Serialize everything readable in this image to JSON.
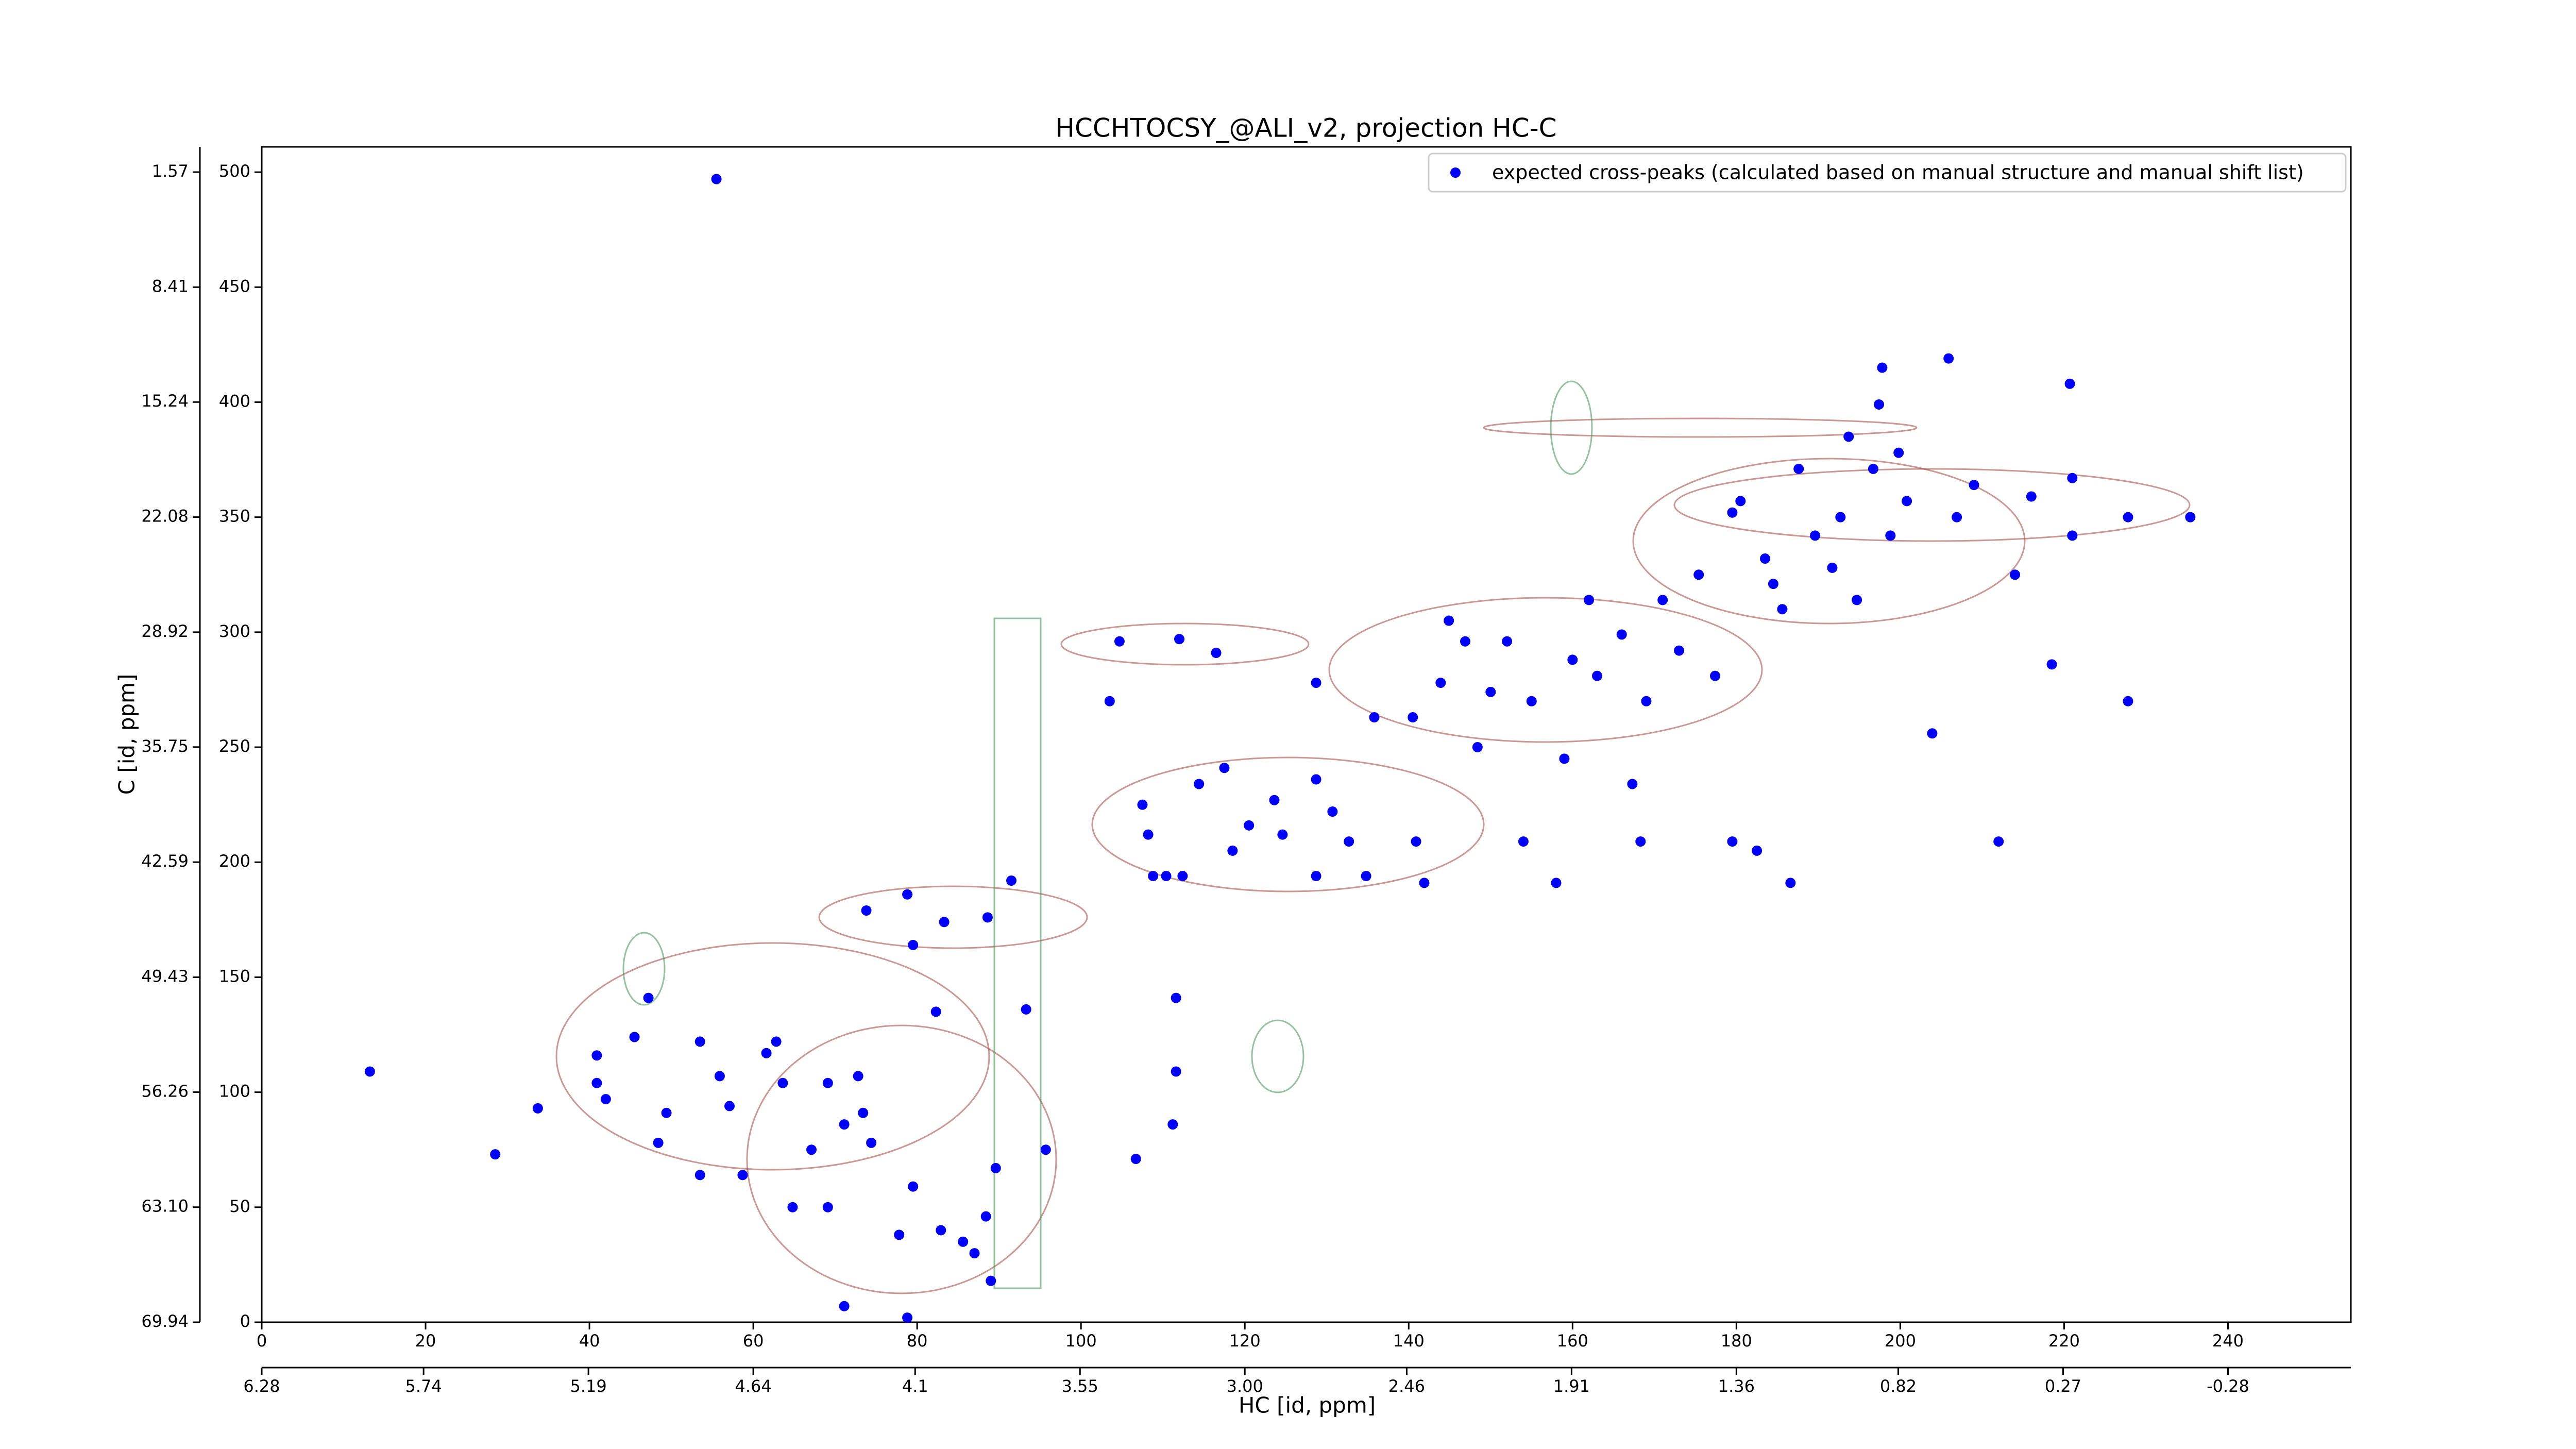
{
  "chart_data": {
    "type": "scatter",
    "title": "HCCHTOCSY_@ALI_v2, projection HC-C",
    "xlabel": "HC [id, ppm]",
    "ylabel": "C [id, ppm]",
    "xlim": [
      0,
      255
    ],
    "ylim": [
      0,
      511
    ],
    "xticks": [
      0,
      20,
      40,
      60,
      80,
      100,
      120,
      140,
      160,
      180,
      200,
      220,
      240
    ],
    "yticks": [
      0,
      50,
      100,
      150,
      200,
      250,
      300,
      350,
      400,
      450,
      500
    ],
    "x2lim": [
      6.28,
      -0.69
    ],
    "x2ticks": [
      6.28,
      5.74,
      5.19,
      4.64,
      4.1,
      3.55,
      {
        "value": 3,
        "label": "3.00"
      },
      2.46,
      1.91,
      1.36,
      0.82,
      0.27,
      -0.28
    ],
    "y2lim": [
      69.94,
      0.07
    ],
    "y2ticks": [
      69.94,
      {
        "value": 63.1,
        "label": "63.10"
      },
      56.26,
      49.43,
      42.59,
      35.75,
      28.92,
      22.08,
      15.24,
      8.41,
      1.57
    ],
    "legend_loc": "upper right",
    "series": [
      {
        "name": "expected cross-peaks (calculated based on manual structure and manual shift list)",
        "color": "#0000ff",
        "x": [
          55.5,
          13.2,
          28.5,
          33.7,
          40.9,
          40.9,
          42,
          45.5,
          47.2,
          48.4,
          49.4,
          53.5,
          53.5,
          55.9,
          57.1,
          58.7,
          61.6,
          62.8,
          63.6,
          64.8,
          67.1,
          69.1,
          69.1,
          71.1,
          72.8,
          73.4,
          74.4,
          71.1,
          78.8,
          77.8,
          79.5,
          82.9,
          85.6,
          87,
          88.4,
          89,
          89.6,
          95.7,
          93.3,
          78.8,
          79.5,
          82.3,
          83.3,
          73.8,
          88.6,
          91.5,
          103.5,
          104.7,
          112,
          116.5,
          106.7,
          111.2,
          111.6,
          111.6,
          108.8,
          110.4,
          112.4,
          108.2,
          107.5,
          114.4,
          117.5,
          118.5,
          120.5,
          123.6,
          124.6,
          128.7,
          128.7,
          128.7,
          130.7,
          132.7,
          134.8,
          135.8,
          140.5,
          140.9,
          141.9,
          143.9,
          144.9,
          146.9,
          148.4,
          150,
          152,
          154,
          155,
          158,
          159,
          160,
          162,
          163,
          166,
          167.3,
          168.3,
          169,
          171,
          173,
          175.4,
          177.4,
          179.5,
          180.5,
          182.5,
          183.5,
          185.6,
          186.6,
          187.6,
          189.6,
          191.7,
          192.7,
          194.7,
          196.7,
          197.8,
          198.8,
          199.8,
          200.8,
          203.9,
          205.9,
          206.9,
          209,
          212,
          214,
          216,
          218.5,
          220.7,
          221,
          221,
          227.8,
          227.8,
          235.4,
          197.4,
          193.7,
          184.5,
          179.5
        ],
        "values": [
          497,
          109,
          73,
          93,
          116,
          104,
          97,
          124,
          141,
          78,
          91,
          122,
          64,
          107,
          94,
          64,
          117,
          122,
          104,
          50,
          75,
          50,
          104,
          86,
          107,
          91,
          78,
          7,
          2,
          38,
          59,
          40,
          35,
          30,
          46,
          18,
          67,
          75,
          136,
          186,
          164,
          135,
          174,
          179,
          176,
          192,
          270,
          296,
          297,
          291,
          71,
          86,
          109,
          141,
          194,
          194,
          194,
          212,
          225,
          234,
          241,
          205,
          216,
          227,
          212,
          194,
          236,
          278,
          222,
          209,
          194,
          263,
          263,
          209,
          191,
          278,
          305,
          296,
          250,
          274,
          296,
          209,
          270,
          191,
          245,
          288,
          314,
          281,
          299,
          234,
          209,
          270,
          314,
          292,
          325,
          281,
          209,
          357,
          205,
          332,
          310,
          191,
          371,
          342,
          328,
          350,
          314,
          371,
          415,
          342,
          378,
          357,
          256,
          419,
          350,
          364,
          209,
          325,
          359,
          286,
          408,
          342,
          367,
          270,
          350,
          350,
          399,
          385,
          321,
          352
        ]
      }
    ]
  }
}
